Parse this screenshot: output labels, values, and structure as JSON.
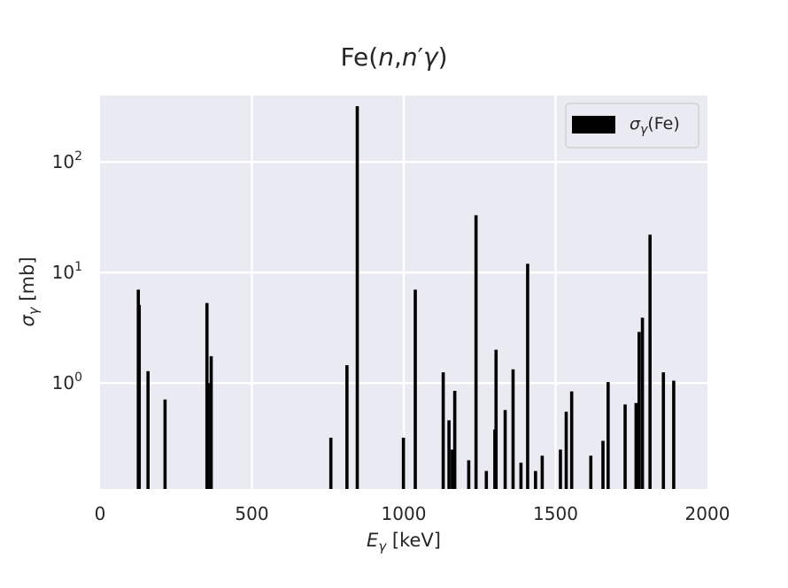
{
  "chart_data": {
    "type": "bar",
    "title": "Fe(n,n′γ)",
    "xlabel": "E_γ [keV]",
    "ylabel": "σ_γ [mb]",
    "yscale": "log",
    "xlim": [
      0,
      2000
    ],
    "ylim": [
      0.11,
      400
    ],
    "xticks": [
      0,
      500,
      1000,
      1500,
      2000
    ],
    "xtick_labels": [
      "0",
      "500",
      "1000",
      "1500",
      "2000"
    ],
    "yticks": [
      {
        "value": 1,
        "base": "10",
        "exp": "0"
      },
      {
        "value": 10,
        "base": "10",
        "exp": "1"
      },
      {
        "value": 100,
        "base": "10",
        "exp": "2"
      }
    ],
    "grid": true,
    "legend": {
      "position": "top-right",
      "label_main": "σ",
      "label_sub": "γ",
      "label_suffix": "(Fe)"
    },
    "bar_color": "#000000",
    "bars": [
      {
        "x": 126,
        "y": 7.0
      },
      {
        "x": 129,
        "y": 5.1
      },
      {
        "x": 158,
        "y": 1.28
      },
      {
        "x": 214,
        "y": 0.71
      },
      {
        "x": 352,
        "y": 5.3
      },
      {
        "x": 356,
        "y": 1.0
      },
      {
        "x": 366,
        "y": 1.75
      },
      {
        "x": 760,
        "y": 0.32
      },
      {
        "x": 813,
        "y": 1.45
      },
      {
        "x": 847,
        "y": 320
      },
      {
        "x": 999,
        "y": 0.32
      },
      {
        "x": 1038,
        "y": 7.0
      },
      {
        "x": 1130,
        "y": 1.25
      },
      {
        "x": 1149,
        "y": 0.46
      },
      {
        "x": 1160,
        "y": 0.25
      },
      {
        "x": 1168,
        "y": 0.85
      },
      {
        "x": 1214,
        "y": 0.2
      },
      {
        "x": 1238,
        "y": 33
      },
      {
        "x": 1272,
        "y": 0.16
      },
      {
        "x": 1300,
        "y": 0.38
      },
      {
        "x": 1304,
        "y": 2.0
      },
      {
        "x": 1334,
        "y": 0.57
      },
      {
        "x": 1360,
        "y": 1.33
      },
      {
        "x": 1386,
        "y": 0.19
      },
      {
        "x": 1408,
        "y": 12
      },
      {
        "x": 1434,
        "y": 0.16
      },
      {
        "x": 1456,
        "y": 0.22
      },
      {
        "x": 1516,
        "y": 0.25
      },
      {
        "x": 1535,
        "y": 0.55
      },
      {
        "x": 1553,
        "y": 0.84
      },
      {
        "x": 1616,
        "y": 0.22
      },
      {
        "x": 1656,
        "y": 0.3
      },
      {
        "x": 1673,
        "y": 1.02
      },
      {
        "x": 1729,
        "y": 0.64
      },
      {
        "x": 1765,
        "y": 0.66
      },
      {
        "x": 1775,
        "y": 2.9
      },
      {
        "x": 1786,
        "y": 3.9
      },
      {
        "x": 1811,
        "y": 22
      },
      {
        "x": 1855,
        "y": 1.25
      },
      {
        "x": 1889,
        "y": 1.05
      }
    ]
  }
}
